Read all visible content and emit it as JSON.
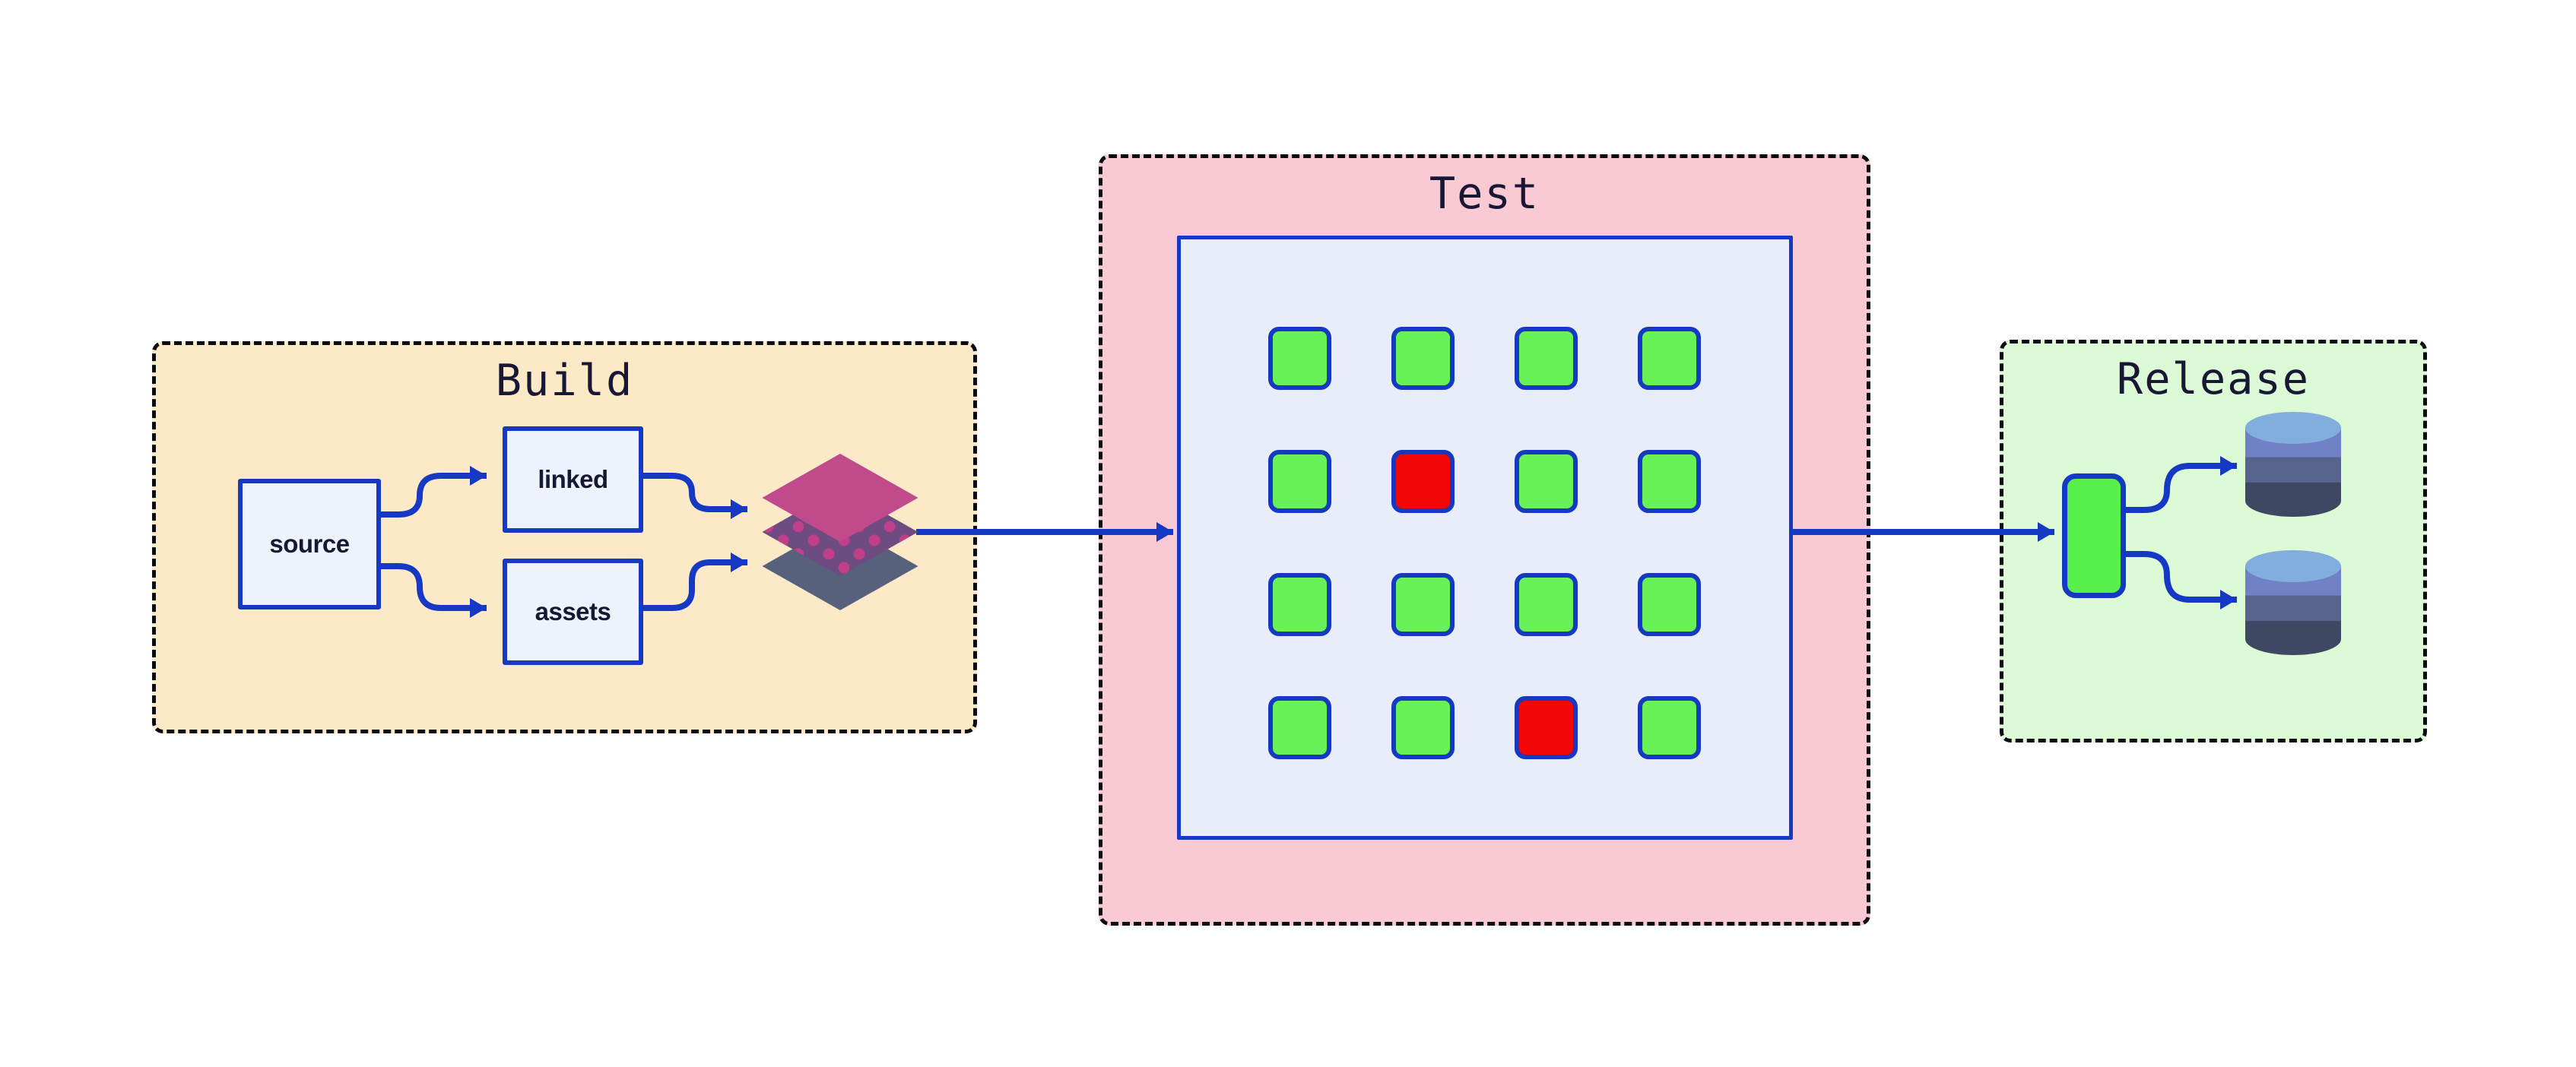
{
  "diagram": {
    "type": "pipeline-flow-diagram",
    "background": "#ffffff",
    "stage_order": [
      "Build",
      "Test",
      "Release"
    ]
  },
  "build": {
    "title": "Build",
    "nodes": {
      "source": {
        "label": "source"
      },
      "linked": {
        "label": "linked"
      },
      "assets": {
        "label": "assets"
      }
    },
    "artifact_icon": "layers-icon",
    "layer_colors": {
      "top": "#c14a8d",
      "middle": "#6e4b81",
      "middle_dots": "#c13e88",
      "bottom": "#57617b"
    }
  },
  "test": {
    "title": "Test",
    "grid": {
      "rows": 4,
      "cols": 4,
      "cells": [
        "pass",
        "pass",
        "pass",
        "pass",
        "pass",
        "fail",
        "pass",
        "pass",
        "pass",
        "pass",
        "pass",
        "pass",
        "pass",
        "pass",
        "fail",
        "pass"
      ],
      "pass_count": 14,
      "fail_count": 2
    }
  },
  "release": {
    "title": "Release",
    "deploy_node_icon": "deploy-node",
    "targets": [
      {
        "icon": "database-icon"
      },
      {
        "icon": "database-icon"
      }
    ],
    "database_colors": {
      "top": "#82aedd",
      "band1": "#7181c5",
      "band2": "#56648c",
      "band3": "#3f4862"
    }
  },
  "colors": {
    "bg": "#ffffff",
    "ink": "#0b0b12",
    "navy": "#181835",
    "blue": "#1539c2",
    "peach": "#fce9c8",
    "pink": "#f9cad4",
    "mint": "#dcfad6",
    "lavender": "#e8edf9",
    "node_fill": "#eef2fc",
    "pass_green": "#68f257",
    "fail_red": "#f20606",
    "release_green": "#58f04b"
  }
}
